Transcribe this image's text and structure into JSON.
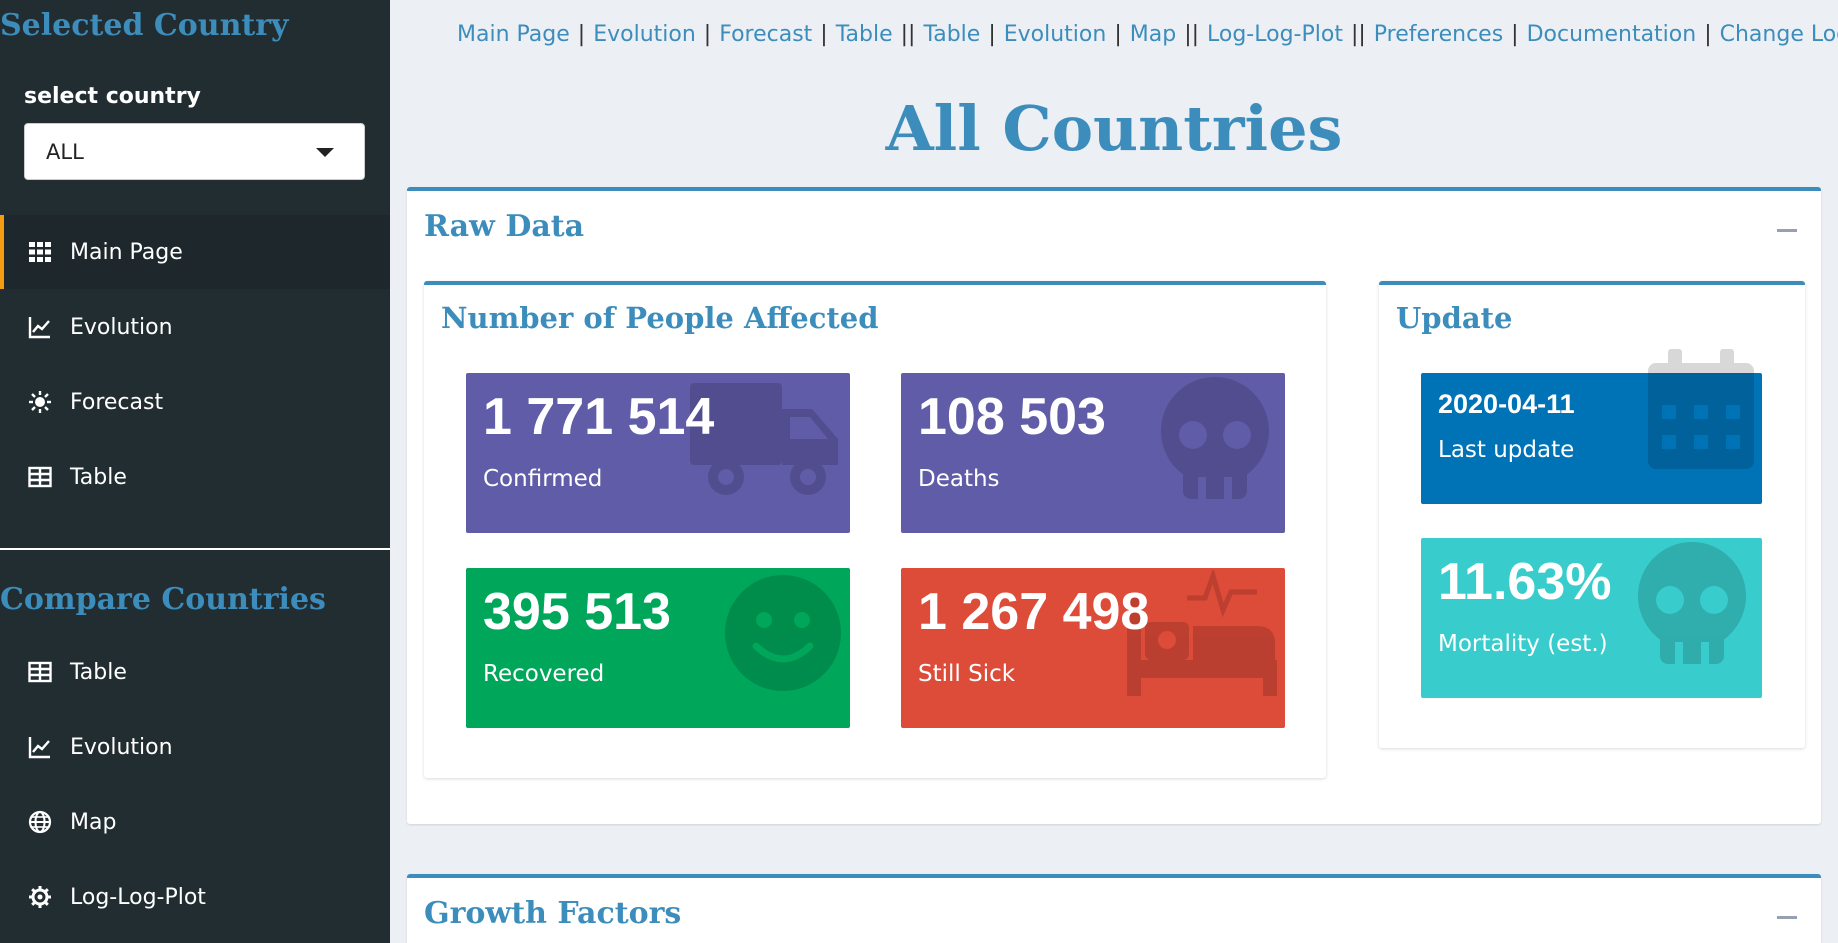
{
  "sidebar": {
    "title": "Selected Country",
    "select_label": "select country",
    "select_value": "ALL",
    "menu": [
      {
        "label": "Main Page",
        "icon": "grid-icon"
      },
      {
        "label": "Evolution",
        "icon": "line-chart-icon"
      },
      {
        "label": "Forecast",
        "icon": "sun-icon"
      },
      {
        "label": "Table",
        "icon": "table-icon"
      }
    ],
    "compare_title": "Compare Countries",
    "compare_menu": [
      {
        "label": "Table",
        "icon": "table-icon"
      },
      {
        "label": "Evolution",
        "icon": "line-chart-icon"
      },
      {
        "label": "Map",
        "icon": "globe-icon"
      },
      {
        "label": "Log-Log-Plot",
        "icon": "gear-icon"
      }
    ]
  },
  "topnav": {
    "links": [
      "Main Page",
      "Evolution",
      "Forecast",
      "Table",
      "Table",
      "Evolution",
      "Map",
      "Log-Log-Plot",
      "Preferences",
      "Documentation",
      "Change Log"
    ],
    "separators": [
      "|",
      "|",
      "|",
      "||",
      "|",
      "|",
      "||",
      "||",
      "|",
      "|"
    ]
  },
  "page_title": "All Countries",
  "raw_data": {
    "title": "Raw Data",
    "people": {
      "title": "Number of People Affected",
      "confirmed": {
        "value": "1 771 514",
        "label": "Confirmed",
        "color": "#605ca8",
        "icon": "truck-icon"
      },
      "deaths": {
        "value": "108 503",
        "label": "Deaths",
        "color": "#605ca8",
        "icon": "skull-icon"
      },
      "recovered": {
        "value": "395 513",
        "label": "Recovered",
        "color": "#00a65a",
        "icon": "smile-icon"
      },
      "still_sick": {
        "value": "1 267 498",
        "label": "Still Sick",
        "color": "#dd4b39",
        "icon": "bed-icon"
      }
    },
    "update": {
      "title": "Update",
      "last_update": {
        "value": "2020-04-11",
        "label": "Last update",
        "color": "#0073b7",
        "icon": "calendar-icon"
      },
      "mortality": {
        "value": "11.63%",
        "label": "Mortality (est.)",
        "color": "#39cccc",
        "icon": "skull-icon"
      }
    }
  },
  "growth": {
    "title": "Growth Factors"
  }
}
